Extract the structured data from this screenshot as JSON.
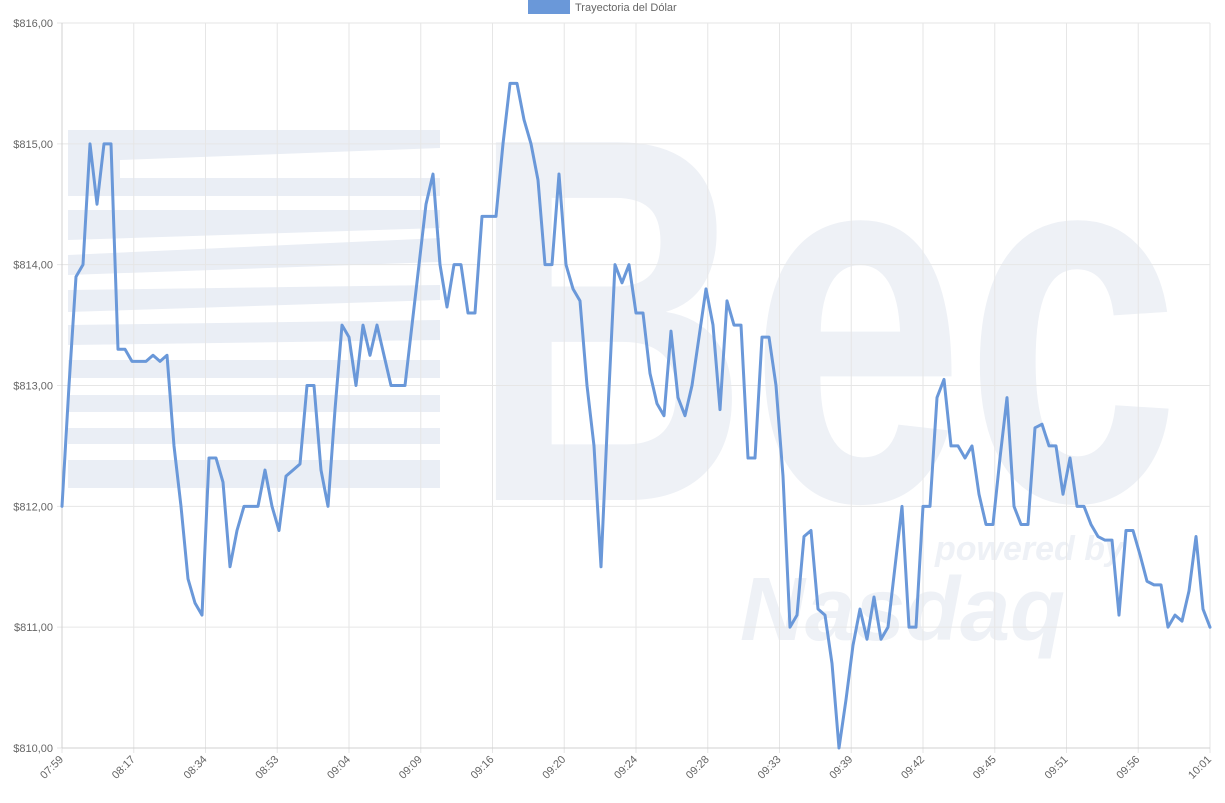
{
  "watermark": {
    "brand": "Bec",
    "tagline": "powered by",
    "partner": "Nasdaq"
  },
  "colors": {
    "line": "#6a98d9",
    "legend_fill": "#6a98d9",
    "grid": "#e6e6e6",
    "axis": "#d0d0d0",
    "tick_text": "#666666",
    "watermark": "#e9edf4"
  },
  "chart_data": {
    "type": "line",
    "legend": {
      "position": "top-center"
    },
    "grid": true,
    "series": [
      {
        "name": "Trayectoria del Dólar",
        "values": [
          812.0,
          813.0,
          813.9,
          814.0,
          815.0,
          814.5,
          815.0,
          815.0,
          813.3,
          813.3,
          813.2,
          813.2,
          813.2,
          813.25,
          813.2,
          813.25,
          812.5,
          812.0,
          811.4,
          811.2,
          811.1,
          812.4,
          812.4,
          812.2,
          811.5,
          811.8,
          812.0,
          812.0,
          812.0,
          812.3,
          812.0,
          811.8,
          812.25,
          812.3,
          812.35,
          813.0,
          813.0,
          812.3,
          812.0,
          812.8,
          813.5,
          813.4,
          813.0,
          813.5,
          813.25,
          813.5,
          813.25,
          813.0,
          813.0,
          813.0,
          813.5,
          814.0,
          814.5,
          814.75,
          814.0,
          813.65,
          814.0,
          814.0,
          813.6,
          813.6,
          814.4,
          814.4,
          814.4,
          815.0,
          815.5,
          815.5,
          815.2,
          815.0,
          814.7,
          814.0,
          814.0,
          814.75,
          814.0,
          813.8,
          813.7,
          813.0,
          812.5,
          811.5,
          812.8,
          814.0,
          813.85,
          814.0,
          813.6,
          813.6,
          813.1,
          812.85,
          812.75,
          813.45,
          812.9,
          812.75,
          813.0,
          813.4,
          813.8,
          813.5,
          812.8,
          813.7,
          813.5,
          813.5,
          812.4,
          812.4,
          813.4,
          813.4,
          813.0,
          812.25,
          811.0,
          811.1,
          811.75,
          811.8,
          811.15,
          811.1,
          810.7,
          810.0,
          810.4,
          810.85,
          811.15,
          810.9,
          811.25,
          810.9,
          811.0,
          811.5,
          812.0,
          811.0,
          811.0,
          812.0,
          812.0,
          812.9,
          813.05,
          812.5,
          812.5,
          812.4,
          812.5,
          812.1,
          811.85,
          811.85,
          812.4,
          812.9,
          812.0,
          811.85,
          811.85,
          812.65,
          812.68,
          812.5,
          812.5,
          812.1,
          812.4,
          812.0,
          812.0,
          811.85,
          811.75,
          811.72,
          811.72,
          811.1,
          811.8,
          811.8,
          811.6,
          811.38,
          811.35,
          811.35,
          811.0,
          811.1,
          811.05,
          811.3,
          811.75,
          811.15,
          811.0
        ]
      }
    ],
    "x_tick_labels": [
      "07:59",
      "08:17",
      "08:34",
      "08:53",
      "09:04",
      "09:09",
      "09:16",
      "09:20",
      "09:24",
      "09:28",
      "09:33",
      "09:39",
      "09:42",
      "09:45",
      "09:51",
      "09:56",
      "10:01"
    ],
    "y_tick_labels": [
      "$810,00",
      "$811,00",
      "$812,00",
      "$813,00",
      "$814,00",
      "$815,00",
      "$816,00"
    ],
    "ylim": [
      810,
      816
    ]
  }
}
